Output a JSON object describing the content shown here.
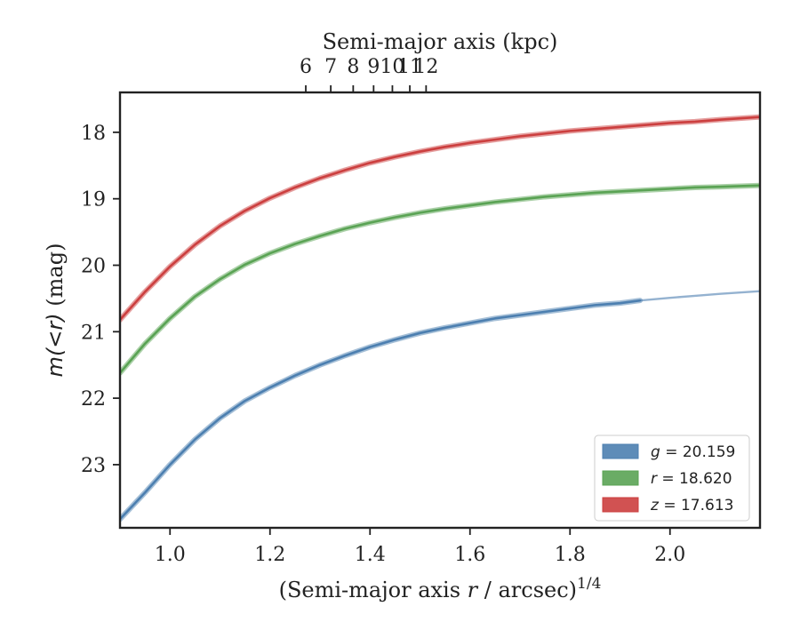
{
  "chart_data": {
    "type": "line",
    "xlabel": "(Semi-major axis r / arcsec)",
    "xlabel_parts": {
      "prefix": "(Semi-major axis ",
      "var": "r",
      "suffix": " / arcsec)",
      "exponent": "1/4"
    },
    "top_xlabel": "Semi-major axis (kpc)",
    "ylabel": "m(<r) (mag)",
    "ylabel_parts": {
      "math": "m(<r)",
      "unit": " (mag)"
    },
    "xlim": [
      0.9,
      2.18
    ],
    "ylim": [
      23.95,
      17.4
    ],
    "y_inverted": true,
    "x_ticks": [
      1.0,
      1.2,
      1.4,
      1.6,
      1.8,
      2.0
    ],
    "x_tick_labels": [
      "1.0",
      "1.2",
      "1.4",
      "1.6",
      "1.8",
      "2.0"
    ],
    "y_ticks": [
      18,
      19,
      20,
      21,
      22,
      23
    ],
    "y_tick_labels": [
      "18",
      "19",
      "20",
      "21",
      "22",
      "23"
    ],
    "top_ticks": [
      6,
      7,
      8,
      9,
      10,
      11,
      12
    ],
    "top_tick_labels": [
      "6",
      "7",
      "8",
      "9",
      "10",
      "11",
      "12"
    ],
    "top_scale_factor": 2.295,
    "legend": {
      "placement": "lower-right"
    },
    "series": [
      {
        "name": "g = 20.159",
        "legend_var": "g",
        "legend_value": "= 20.159",
        "color": "#4c7fb0",
        "x": [
          0.9,
          0.95,
          1.0,
          1.05,
          1.1,
          1.15,
          1.2,
          1.25,
          1.3,
          1.35,
          1.4,
          1.45,
          1.5,
          1.55,
          1.6,
          1.65,
          1.7,
          1.75,
          1.8,
          1.85,
          1.9,
          1.94
        ],
        "y": [
          23.82,
          23.42,
          23.0,
          22.62,
          22.3,
          22.04,
          21.84,
          21.66,
          21.5,
          21.36,
          21.23,
          21.12,
          21.02,
          20.94,
          20.87,
          20.8,
          20.75,
          20.7,
          20.65,
          20.6,
          20.57,
          20.53
        ],
        "extension_x": [
          1.94,
          2.0,
          2.05,
          2.1,
          2.18
        ],
        "extension_y": [
          20.53,
          20.49,
          20.46,
          20.43,
          20.39
        ]
      },
      {
        "name": "r = 18.620",
        "legend_var": "r",
        "legend_value": "= 18.620",
        "color": "#5aa354",
        "x": [
          0.9,
          0.95,
          1.0,
          1.05,
          1.1,
          1.15,
          1.2,
          1.25,
          1.3,
          1.35,
          1.4,
          1.45,
          1.5,
          1.55,
          1.6,
          1.65,
          1.7,
          1.75,
          1.8,
          1.85,
          1.9,
          1.95,
          2.0,
          2.05,
          2.1,
          2.18
        ],
        "y": [
          21.62,
          21.18,
          20.8,
          20.47,
          20.21,
          19.99,
          19.82,
          19.68,
          19.56,
          19.45,
          19.36,
          19.28,
          19.21,
          19.15,
          19.1,
          19.05,
          19.01,
          18.97,
          18.94,
          18.91,
          18.89,
          18.87,
          18.85,
          18.83,
          18.82,
          18.8
        ]
      },
      {
        "name": "z = 17.613",
        "legend_var": "z",
        "legend_value": "= 17.613",
        "color": "#cc3f3f",
        "x": [
          0.9,
          0.95,
          1.0,
          1.05,
          1.1,
          1.15,
          1.2,
          1.25,
          1.3,
          1.35,
          1.4,
          1.45,
          1.5,
          1.55,
          1.6,
          1.65,
          1.7,
          1.75,
          1.8,
          1.85,
          1.9,
          1.95,
          2.0,
          2.05,
          2.1,
          2.18
        ],
        "y": [
          20.82,
          20.4,
          20.02,
          19.69,
          19.41,
          19.18,
          18.99,
          18.83,
          18.69,
          18.57,
          18.46,
          18.37,
          18.29,
          18.22,
          18.16,
          18.11,
          18.06,
          18.02,
          17.98,
          17.95,
          17.92,
          17.89,
          17.86,
          17.84,
          17.81,
          17.77
        ]
      }
    ]
  }
}
